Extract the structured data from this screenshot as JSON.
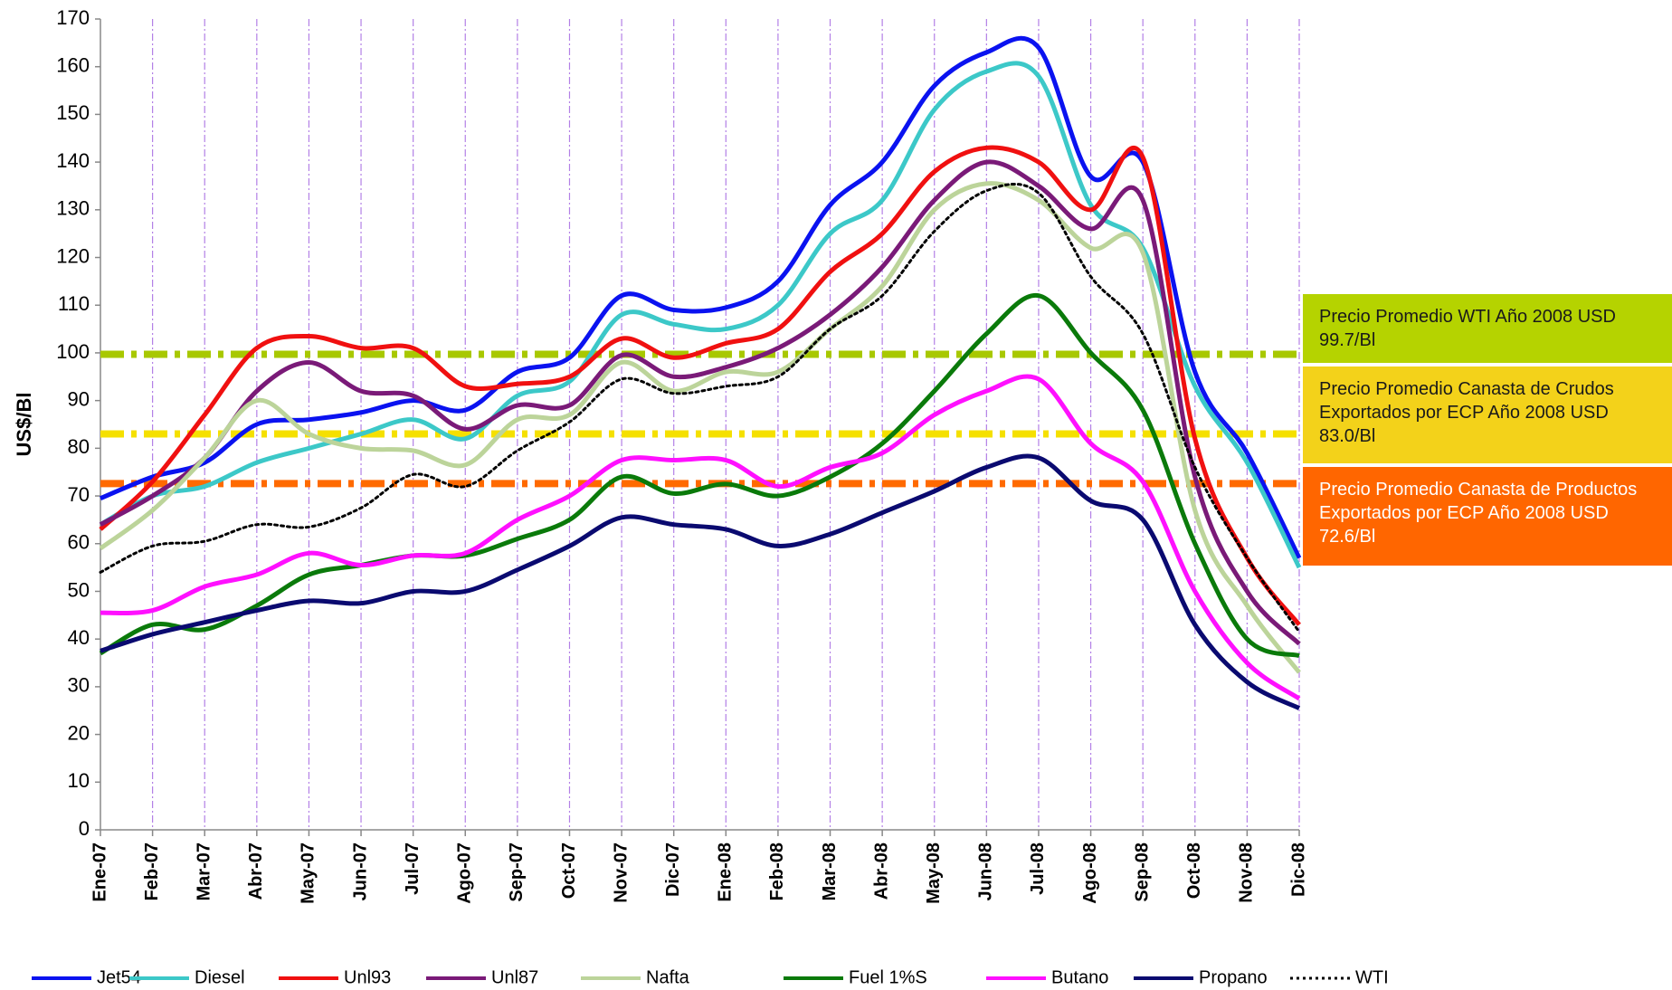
{
  "chart_data": {
    "type": "line",
    "y_label": "US$/Bl",
    "categories": [
      "Ene-07",
      "Feb-07",
      "Mar-07",
      "Abr-07",
      "May-07",
      "Jun-07",
      "Jul-07",
      "Ago-07",
      "Sep-07",
      "Oct-07",
      "Nov-07",
      "Dic-07",
      "Ene-08",
      "Feb-08",
      "Mar-08",
      "Abr-08",
      "May-08",
      "Jun-08",
      "Jul-08",
      "Ago-08",
      "Sep-08",
      "Oct-08",
      "Nov-08",
      "Dic-08"
    ],
    "series": [
      {
        "name": "Jet54",
        "color": "#0a12f0",
        "style": "solid",
        "values": [
          69.5,
          74,
          77,
          85,
          86,
          87.5,
          90,
          88,
          96,
          99,
          112,
          109,
          109.5,
          115,
          131,
          140,
          156,
          163,
          164,
          137,
          140,
          96,
          79,
          57
        ]
      },
      {
        "name": "Diesel",
        "color": "#3cc8c8",
        "style": "solid",
        "values": [
          64,
          70,
          72,
          77,
          80,
          83,
          86,
          82,
          91,
          94,
          108,
          106,
          105,
          110,
          125,
          132,
          151,
          159,
          158,
          131,
          122,
          93,
          77,
          55
        ]
      },
      {
        "name": "Unl93",
        "color": "#f01010",
        "style": "solid",
        "values": [
          63,
          73,
          87,
          101,
          103.5,
          101,
          101,
          93,
          93.5,
          95,
          103,
          99,
          102,
          105,
          117,
          125,
          138,
          143,
          140,
          130,
          141,
          82,
          57,
          43
        ]
      },
      {
        "name": "Unl87",
        "color": "#7a1a78",
        "style": "solid",
        "values": [
          64,
          70,
          78,
          92,
          98,
          92,
          91,
          84,
          89,
          89,
          99.5,
          95,
          97,
          101,
          108,
          118,
          132,
          140,
          135,
          126,
          132,
          74,
          50,
          39
        ]
      },
      {
        "name": "Nafta",
        "color": "#bcd49a",
        "style": "solid",
        "values": [
          59,
          67,
          78,
          90,
          83,
          80,
          79.5,
          76.5,
          86,
          87,
          98,
          92,
          96,
          96,
          105,
          114,
          130,
          135.5,
          132,
          122,
          121,
          67,
          47,
          33
        ]
      },
      {
        "name": "Fuel 1%S",
        "color": "#0a7a0a",
        "style": "solid",
        "values": [
          37,
          43,
          42,
          47,
          53.5,
          55.5,
          57.5,
          57.5,
          61,
          65,
          74,
          70.5,
          72.5,
          70,
          74,
          81,
          92,
          104,
          112,
          100,
          88,
          60,
          40,
          36.5
        ]
      },
      {
        "name": "Butano",
        "color": "#ff10ff",
        "style": "solid",
        "values": [
          45.5,
          46,
          51,
          53.5,
          58,
          55.5,
          57.5,
          58,
          65,
          70,
          77.5,
          77.5,
          77.5,
          72,
          76,
          79,
          87,
          92,
          94.5,
          81,
          73,
          50,
          35,
          27.5
        ]
      },
      {
        "name": "Propano",
        "color": "#0a0a70",
        "style": "solid",
        "values": [
          37.5,
          41,
          43.5,
          46,
          48,
          47.5,
          50,
          50,
          54.5,
          59.5,
          65.5,
          64,
          63,
          59.5,
          62,
          66.5,
          71,
          76,
          78,
          69,
          65,
          43,
          31,
          25.5
        ]
      },
      {
        "name": "WTI",
        "color": "#000000",
        "style": "dotted",
        "values": [
          54,
          59.5,
          60.5,
          64,
          63.5,
          67.5,
          74.5,
          72,
          79.5,
          85.5,
          94.5,
          91.5,
          93,
          95,
          105,
          112,
          125.5,
          134,
          133.5,
          116,
          104,
          76,
          57,
          41.5
        ]
      }
    ],
    "reference_lines": [
      {
        "value": 99.7,
        "color": "#a8c800",
        "box_color": "#b5d300",
        "text_color": "#1a1a1a",
        "label": "Precio Promedio WTI Año 2008 USD 99.7/Bl"
      },
      {
        "value": 83.0,
        "color": "#f5e000",
        "box_color": "#f3d21a",
        "text_color": "#1a1a1a",
        "label": "Precio Promedio Canasta de Crudos Exportados por ECP Año 2008 USD 83.0/Bl"
      },
      {
        "value": 72.6,
        "color": "#ff6a00",
        "box_color": "#ff6600",
        "text_color": "#ffffff",
        "label": "Precio Promedio Canasta de Productos Exportados por ECP Año 2008 USD 72.6/Bl"
      }
    ],
    "ylim": [
      0,
      170
    ],
    "yticks": [
      0,
      10,
      20,
      30,
      40,
      50,
      60,
      70,
      80,
      90,
      100,
      110,
      120,
      130,
      140,
      150,
      160,
      170
    ],
    "grid": "x",
    "legend": "bottom"
  }
}
